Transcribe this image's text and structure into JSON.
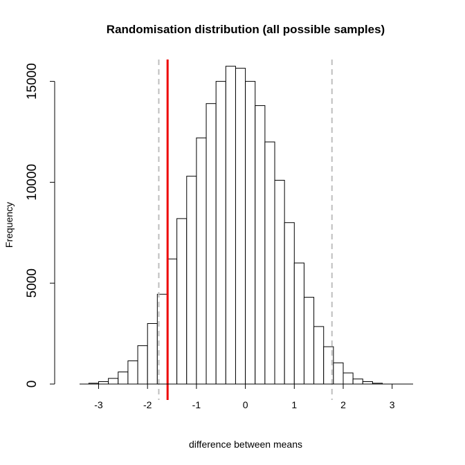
{
  "chart_data": {
    "type": "bar",
    "title": "Randomisation distribution (all possible samples)",
    "xlabel": "difference between means",
    "ylabel": "Frequency",
    "xlim": [
      -3.4,
      3.4
    ],
    "ylim": [
      0,
      16500
    ],
    "x_ticks": [
      -3,
      -2,
      -1,
      0,
      1,
      2,
      3
    ],
    "x_tick_labels": [
      "-3",
      "-2",
      "-1",
      "0",
      "1",
      "2",
      "3"
    ],
    "y_ticks": [
      0,
      5000,
      10000,
      15000
    ],
    "y_tick_labels": [
      "0",
      "5000",
      "10000",
      "15000"
    ],
    "grid": false,
    "bin_width": 0.2,
    "bins": [
      {
        "x0": -3.2,
        "x1": -3.0,
        "count": 40
      },
      {
        "x0": -3.0,
        "x1": -2.8,
        "count": 120
      },
      {
        "x0": -2.8,
        "x1": -2.6,
        "count": 280
      },
      {
        "x0": -2.6,
        "x1": -2.4,
        "count": 600
      },
      {
        "x0": -2.4,
        "x1": -2.2,
        "count": 1150
      },
      {
        "x0": -2.2,
        "x1": -2.0,
        "count": 1900
      },
      {
        "x0": -2.0,
        "x1": -1.8,
        "count": 3000
      },
      {
        "x0": -1.8,
        "x1": -1.6,
        "count": 4450
      },
      {
        "x0": -1.6,
        "x1": -1.4,
        "count": 6200
      },
      {
        "x0": -1.4,
        "x1": -1.2,
        "count": 8200
      },
      {
        "x0": -1.2,
        "x1": -1.0,
        "count": 10300
      },
      {
        "x0": -1.0,
        "x1": -0.8,
        "count": 12200
      },
      {
        "x0": -0.8,
        "x1": -0.6,
        "count": 13900
      },
      {
        "x0": -0.6,
        "x1": -0.4,
        "count": 15000
      },
      {
        "x0": -0.4,
        "x1": -0.2,
        "count": 15750
      },
      {
        "x0": -0.2,
        "x1": 0.0,
        "count": 15650
      },
      {
        "x0": 0.0,
        "x1": 0.2,
        "count": 15000
      },
      {
        "x0": 0.2,
        "x1": 0.4,
        "count": 13800
      },
      {
        "x0": 0.4,
        "x1": 0.6,
        "count": 12000
      },
      {
        "x0": 0.6,
        "x1": 0.8,
        "count": 10100
      },
      {
        "x0": 0.8,
        "x1": 1.0,
        "count": 8000
      },
      {
        "x0": 1.0,
        "x1": 1.2,
        "count": 6000
      },
      {
        "x0": 1.2,
        "x1": 1.4,
        "count": 4300
      },
      {
        "x0": 1.4,
        "x1": 1.6,
        "count": 2850
      },
      {
        "x0": 1.6,
        "x1": 1.8,
        "count": 1850
      },
      {
        "x0": 1.8,
        "x1": 2.0,
        "count": 1050
      },
      {
        "x0": 2.0,
        "x1": 2.2,
        "count": 550
      },
      {
        "x0": 2.2,
        "x1": 2.4,
        "count": 250
      },
      {
        "x0": 2.4,
        "x1": 2.6,
        "count": 120
      },
      {
        "x0": 2.6,
        "x1": 2.8,
        "count": 40
      }
    ],
    "reference_lines": [
      {
        "x": -1.59,
        "style": "solid",
        "color": "#ee0000"
      },
      {
        "x": -1.77,
        "style": "dashed",
        "color": "#bebebe"
      },
      {
        "x": 1.77,
        "style": "dashed",
        "color": "#bebebe"
      }
    ],
    "colors": {
      "bar_fill": "#ffffff",
      "bar_stroke": "#000000",
      "axis": "#000000"
    }
  }
}
